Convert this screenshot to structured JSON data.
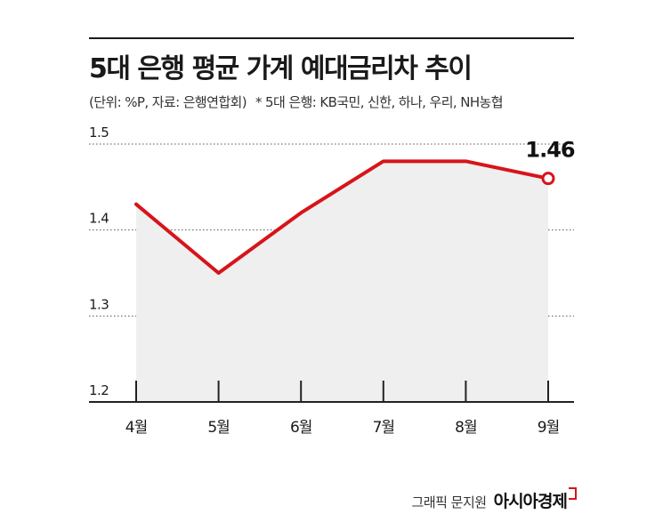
{
  "header": {
    "title": "5대 은행 평균 가계 예대금리차 추이",
    "subtitle_unit": "(단위: %P, 자료: 은행연합회)",
    "subtitle_note": "* 5대 은행: KB국민, 신한, 하나, 우리, NH농협"
  },
  "credit": {
    "byline": "그래픽 문지원",
    "brand": "아시아경제"
  },
  "colors": {
    "line": "#d7141a",
    "area": "#efefef",
    "grid": "#555555",
    "text": "#1a1a1a"
  },
  "chart_data": {
    "type": "line",
    "title": "5대 은행 평균 가계 예대금리차 추이",
    "xlabel": "",
    "ylabel": "",
    "categories": [
      "4월",
      "5월",
      "6월",
      "7월",
      "8월",
      "9월"
    ],
    "series": [
      {
        "values": [
          1.43,
          1.35,
          1.42,
          1.48,
          1.48,
          1.46
        ]
      }
    ],
    "ylim": [
      1.2,
      1.5
    ],
    "yticks": [
      "1.2",
      "1.3",
      "1.4",
      "1.5"
    ],
    "grid": true,
    "annotations": [
      {
        "category": "9월",
        "label": "1.46"
      }
    ]
  }
}
